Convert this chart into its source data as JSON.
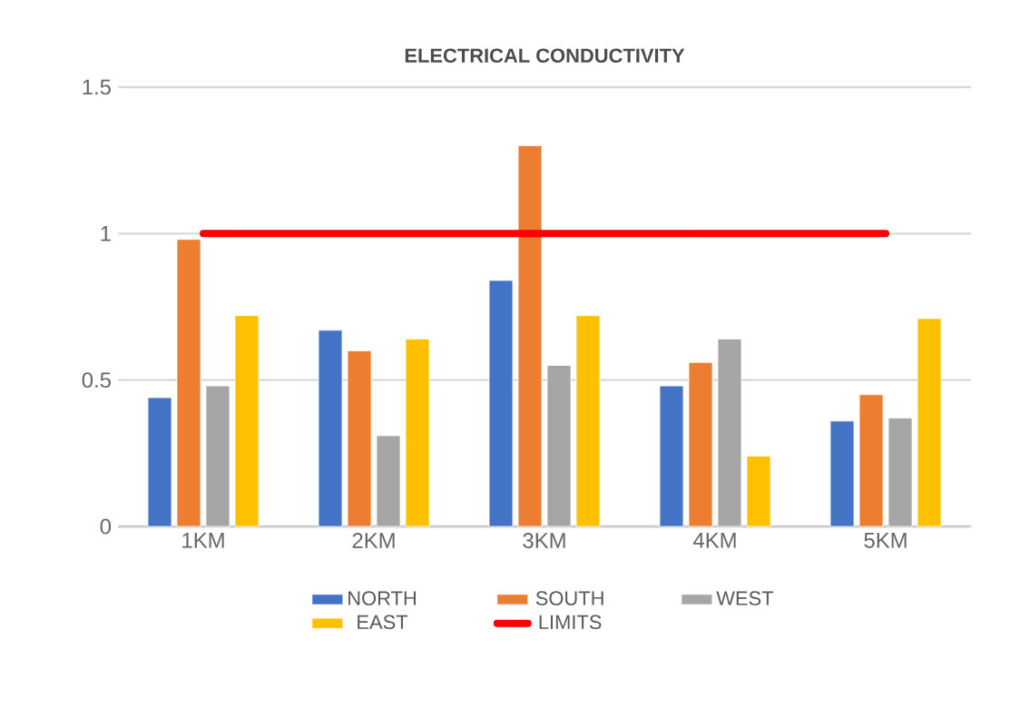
{
  "chart_data": {
    "type": "bar",
    "title": "ELECTRICAL CONDUCTIVITY",
    "categories": [
      "1KM",
      "2KM",
      "3KM",
      "4KM",
      "5KM"
    ],
    "series": [
      {
        "name": "NORTH",
        "color": "#4472c4",
        "values": [
          0.44,
          0.67,
          0.84,
          0.48,
          0.36
        ]
      },
      {
        "name": "SOUTH",
        "color": "#ed7d31",
        "values": [
          0.98,
          0.6,
          1.3,
          0.56,
          0.45
        ]
      },
      {
        "name": "WEST",
        "color": "#a5a5a5",
        "values": [
          0.48,
          0.31,
          0.55,
          0.64,
          0.37
        ]
      },
      {
        "name": "EAST",
        "color": "#ffc000",
        "values": [
          0.72,
          0.64,
          0.72,
          0.24,
          0.71
        ]
      },
      {
        "name": "LIMITS",
        "type": "line",
        "color": "#ff0000",
        "values": [
          1,
          1,
          1,
          1,
          1
        ]
      }
    ],
    "ylim": [
      0,
      1.5
    ],
    "yticks": [
      0,
      0.5,
      1,
      1.5
    ],
    "grid": "y",
    "legend": "bottom"
  }
}
